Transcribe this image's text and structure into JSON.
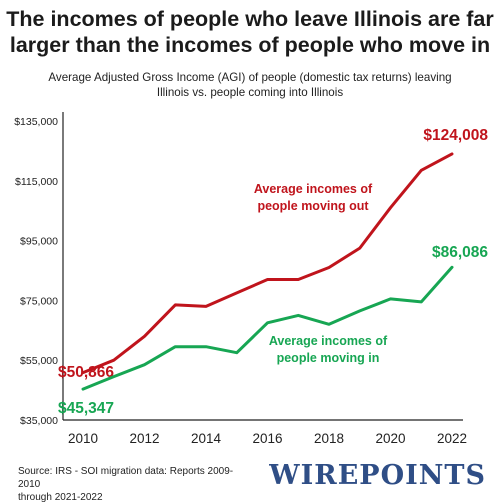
{
  "header": {
    "title_line1": "The incomes of people who leave Illinois are far",
    "title_line2": "larger than the incomes of people who move in",
    "subtitle_line1": "Average Adjusted Gross Income (AGI) of people (domestic tax returns) leaving",
    "subtitle_line2": "Illinois vs. people coming into Illinois"
  },
  "footer": {
    "source_line1": "Source: IRS - SOI migration data: Reports 2009-2010",
    "source_line2": "through 2021-2022",
    "logo": "WIREPOINTS"
  },
  "chart_data": {
    "type": "line",
    "x": [
      2010,
      2011,
      2012,
      2013,
      2014,
      2015,
      2016,
      2017,
      2018,
      2019,
      2020,
      2021,
      2022
    ],
    "xticks": [
      2010,
      2012,
      2014,
      2016,
      2018,
      2020,
      2022
    ],
    "xtick_labels": [
      "2010",
      "2012",
      "2014",
      "2016",
      "2018",
      "2020",
      "2022"
    ],
    "xlim": [
      2010,
      2022
    ],
    "ylim": [
      35000,
      135000
    ],
    "yticks": [
      35000,
      55000,
      75000,
      95000,
      115000,
      135000
    ],
    "ytick_labels": [
      "$35,000",
      "$55,000",
      "$75,000",
      "$95,000",
      "$115,000",
      "$135,000"
    ],
    "grid": false,
    "series": [
      {
        "name": "Average incomes of people moving out",
        "color": "#c0141c",
        "values": [
          50866,
          55000,
          63000,
          73500,
          73000,
          77500,
          82000,
          82000,
          86000,
          92500,
          106000,
          118500,
          124008
        ],
        "label_line1": "Average incomes of",
        "label_line2": "people moving out",
        "start_label": "$50,866",
        "end_label": "$124,008"
      },
      {
        "name": "Average incomes of people moving in",
        "color": "#17a653",
        "values": [
          45347,
          49500,
          53500,
          59500,
          59500,
          57500,
          67500,
          70000,
          67000,
          71500,
          75500,
          74500,
          86086
        ],
        "label_line1": "Average incomes of",
        "label_line2": "people moving in",
        "start_label": "$45,347",
        "end_label": "$86,086"
      }
    ]
  }
}
